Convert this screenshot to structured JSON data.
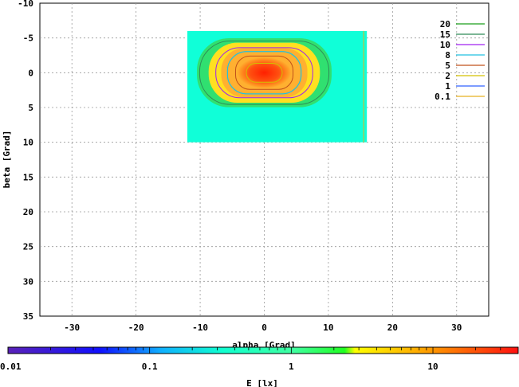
{
  "chart_data": {
    "type": "heatmap",
    "xlabel": "alpha [Grad]",
    "ylabel": "beta [Grad]",
    "xlim": [
      -35,
      35
    ],
    "ylim": [
      35,
      -10
    ],
    "y_axis_inverted": true,
    "grid": true,
    "x_ticks": [
      "-30",
      "-20",
      "-10",
      "0",
      "10",
      "20",
      "30"
    ],
    "y_ticks": [
      "-10",
      "-5",
      "0",
      "5",
      "10",
      "15",
      "20",
      "25",
      "30",
      "35"
    ],
    "data_extent": {
      "alpha": [
        -12,
        16
      ],
      "beta": [
        -6,
        10
      ]
    },
    "peak": {
      "alpha": 0,
      "beta": 0
    },
    "contour_levels": [
      {
        "label": "20",
        "color": "#1a9e1a"
      },
      {
        "label": "15",
        "color": "#2e8b57"
      },
      {
        "label": "10",
        "color": "#a020f0"
      },
      {
        "label": "8",
        "color": "#20c0e0"
      },
      {
        "label": "5",
        "color": "#c0501a"
      },
      {
        "label": "2",
        "color": "#d4c000"
      },
      {
        "label": "1",
        "color": "#3060ff"
      },
      {
        "label": "0.1",
        "color": "#e8b020"
      }
    ],
    "legend_position": "top-right",
    "colorbar": {
      "label": "E [lx]",
      "scale": "log",
      "range": [
        0.01,
        40
      ],
      "tick_labels": [
        "0.01",
        "0.1",
        "1",
        "10"
      ]
    }
  }
}
